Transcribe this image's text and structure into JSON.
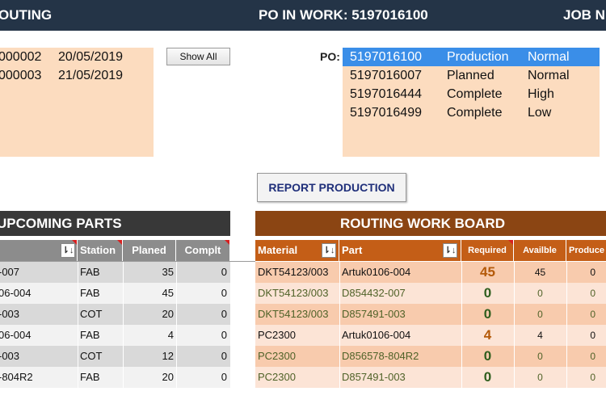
{
  "header": {
    "left_title": "OUTING",
    "po_in_work": "PO IN WORK: 5197016100",
    "right_title": "JOB N"
  },
  "jobs_list": {
    "rows": [
      {
        "id": "000002",
        "date": "20/05/2019"
      },
      {
        "id": "000003",
        "date": "21/05/2019"
      }
    ]
  },
  "show_all_label": "Show All",
  "po_label": "PO:",
  "po_list": {
    "rows": [
      {
        "po": "5197016100",
        "status": "Production",
        "priority": "Normal",
        "selected": true
      },
      {
        "po": "5197016007",
        "status": "Planned",
        "priority": "Normal"
      },
      {
        "po": "5197016444",
        "status": "Complete",
        "priority": "High"
      },
      {
        "po": "5197016499",
        "status": "Complete",
        "priority": "Low"
      }
    ]
  },
  "report_button_label": "REPORT PRODUCTION",
  "upcoming": {
    "title": "UPCOMING PARTS",
    "headers": {
      "station": "Station",
      "planed": "Planed",
      "complt": "Complt"
    },
    "rows": [
      {
        "part": "-007",
        "station": "FAB",
        "planed": "35",
        "complt": "0"
      },
      {
        "part": "06-004",
        "station": "FAB",
        "planed": "45",
        "complt": "0"
      },
      {
        "part": "-003",
        "station": "COT",
        "planed": "20",
        "complt": "0"
      },
      {
        "part": "06-004",
        "station": "FAB",
        "planed": "4",
        "complt": "0"
      },
      {
        "part": "-003",
        "station": "COT",
        "planed": "12",
        "complt": "0"
      },
      {
        "part": "-804R2",
        "station": "FAB",
        "planed": "20",
        "complt": "0"
      }
    ]
  },
  "routing": {
    "title": "ROUTING WORK BOARD",
    "headers": {
      "material": "Material",
      "part": "Part",
      "required": "Required",
      "available": "Availble",
      "produced": "Produce"
    },
    "rows": [
      {
        "material": "DKT54123/003",
        "part": "Artuk0106-004",
        "required": "45",
        "available": "45",
        "produced": "0",
        "style": "orange"
      },
      {
        "material": "DKT54123/003",
        "part": "D854432-007",
        "required": "0",
        "available": "0",
        "produced": "0",
        "style": "green"
      },
      {
        "material": "DKT54123/003",
        "part": "D857491-003",
        "required": "0",
        "available": "0",
        "produced": "0",
        "style": "green"
      },
      {
        "material": "PC2300",
        "part": "Artuk0106-004",
        "required": "4",
        "available": "4",
        "produced": "0",
        "style": "orange"
      },
      {
        "material": "PC2300",
        "part": "D856578-804R2",
        "required": "0",
        "available": "0",
        "produced": "0",
        "style": "green"
      },
      {
        "material": "PC2300",
        "part": "D857491-003",
        "required": "0",
        "available": "0",
        "produced": "0",
        "style": "green"
      }
    ]
  }
}
